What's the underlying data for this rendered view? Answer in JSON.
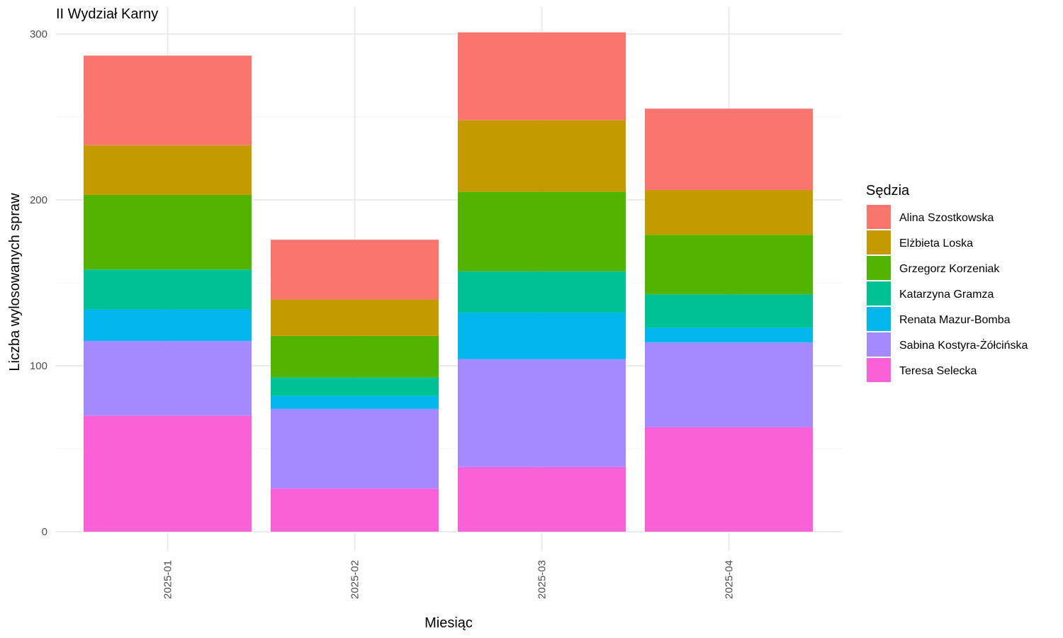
{
  "chart_data": {
    "type": "bar",
    "stacked": true,
    "title": "II Wydział Karny",
    "xlabel": "Miesiąc",
    "ylabel": "Liczba wylosowanych spraw",
    "ylim": [
      0,
      310
    ],
    "yticks": [
      0,
      100,
      200,
      300
    ],
    "grid": true,
    "legend_title": "Sędzia",
    "legend_position": "right",
    "categories": [
      "2025-01",
      "2025-02",
      "2025-03",
      "2025-04"
    ],
    "series": [
      {
        "name": "Teresa Selecka",
        "color": "#FB61D7",
        "values": [
          70,
          26,
          39,
          63
        ]
      },
      {
        "name": "Sabina Kostyra-Żółcińska",
        "color": "#A58AFF",
        "values": [
          45,
          48,
          65,
          51
        ]
      },
      {
        "name": "Renata Mazur-Bomba",
        "color": "#00B6EB",
        "values": [
          19,
          8,
          28,
          9
        ]
      },
      {
        "name": "Katarzyna Gramza",
        "color": "#00C094",
        "values": [
          24,
          11,
          25,
          20
        ]
      },
      {
        "name": "Grzegorz Korzeniak",
        "color": "#53B400",
        "values": [
          45,
          25,
          48,
          36
        ]
      },
      {
        "name": "Elżbieta Loska",
        "color": "#C49A00",
        "values": [
          30,
          22,
          43,
          27
        ]
      },
      {
        "name": "Alina Szostkowska",
        "color": "#F8766D",
        "values": [
          54,
          36,
          53,
          49
        ]
      }
    ],
    "legend_order": [
      "Alina Szostkowska",
      "Elżbieta Loska",
      "Grzegorz Korzeniak",
      "Katarzyna Gramza",
      "Renata Mazur-Bomba",
      "Sabina Kostyra-Żółcińska",
      "Teresa Selecka"
    ]
  }
}
